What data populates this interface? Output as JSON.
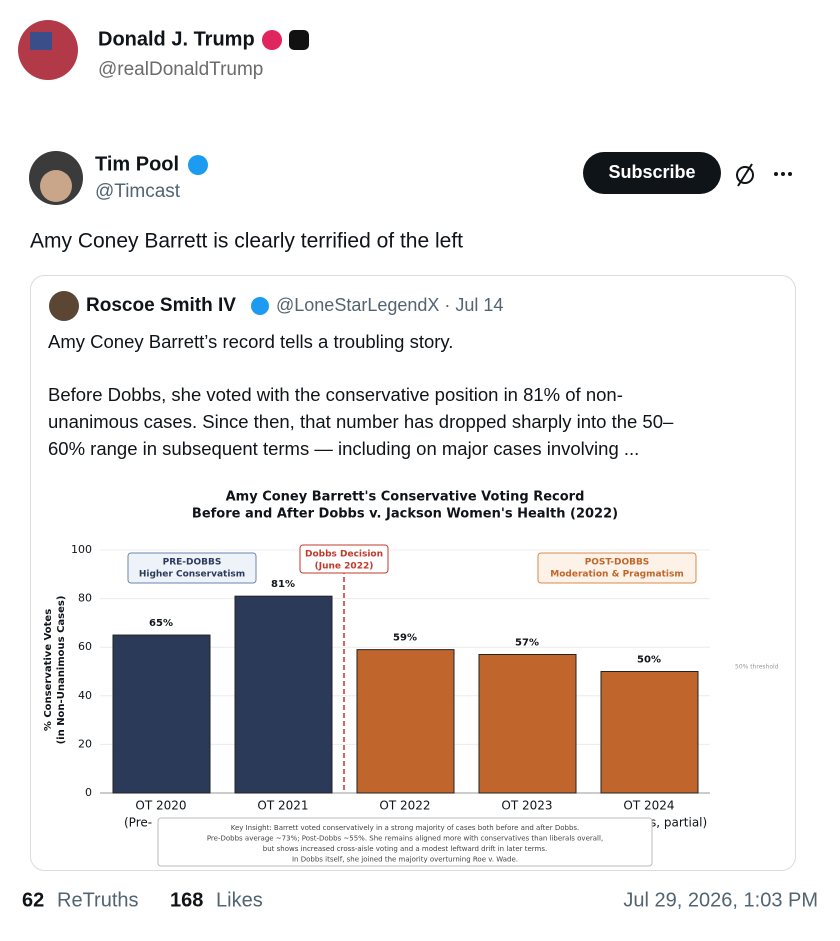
{
  "post": {
    "name": "Donald J. Trump",
    "handle": "@realDonaldTrump"
  },
  "repost": {
    "name": "Tim Pool",
    "handle": "@Timcast",
    "button": "Subscribe",
    "text": "Amy Coney Barrett is clearly terrified of the left"
  },
  "quote": {
    "name": "Roscoe Smith IV",
    "meta": "@LoneStarLegendX · Jul 14",
    "lines": [
      "Amy Coney Barrett’s record tells a troubling story.",
      "Before Dobbs, she voted with the conservative position in 81% of non-",
      "unanimous cases. Since then, that number has dropped sharply into the 50–",
      "60% range in subsequent terms — including on major cases involving ..."
    ]
  },
  "chart_data": {
    "type": "bar",
    "title": "Amy Coney Barrett's Conservative Voting Record",
    "subtitle": "Before and After Dobbs v. Jackson Women's Health (2022)",
    "ylabel": [
      "% Conservative Votes",
      "(in Non-Unanimous Cases)"
    ],
    "categories": [
      "OT 2020",
      "OT 2021",
      "OT 2022",
      "OT 2023",
      "OT 2024"
    ],
    "category_fragments": [
      "(Pre-",
      "s, partial)"
    ],
    "values": [
      65,
      81,
      59,
      57,
      50
    ],
    "value_labels": [
      "65%",
      "81%",
      "59%",
      "57%",
      "50%"
    ],
    "colors": [
      "#2c3a5a",
      "#2c3a5a",
      "#c0662c",
      "#c0662c",
      "#c0662c"
    ],
    "ylim": [
      0,
      100
    ],
    "yticks": [
      0,
      20,
      40,
      60,
      80,
      100
    ],
    "grid": true,
    "annotations": {
      "pre": [
        "PRE-DOBBS",
        "Higher Conservatism"
      ],
      "dobbs": [
        "Dobbs Decision",
        "(June 2022)"
      ],
      "post": [
        "POST-DOBBS",
        "Moderation & Pragmatism"
      ],
      "threshold": "50% threshold"
    },
    "insight": [
      "Key Insight: Barrett voted conservatively in a strong majority of cases both before and after Dobbs.",
      "Pre-Dobbs average ~73%; Post-Dobbs ~55%. She remains aligned more with conservatives than liberals overall,",
      "but shows increased cross-aisle voting and a modest leftward drift in later terms.",
      "In Dobbs itself, she joined the majority overturning Roe v. Wade."
    ]
  },
  "footer": {
    "retruths": "62",
    "retruths_label": "ReTruths",
    "likes": "168",
    "likes_label": "Likes",
    "date": "Jul 29, 2026, 1:03 PM"
  }
}
